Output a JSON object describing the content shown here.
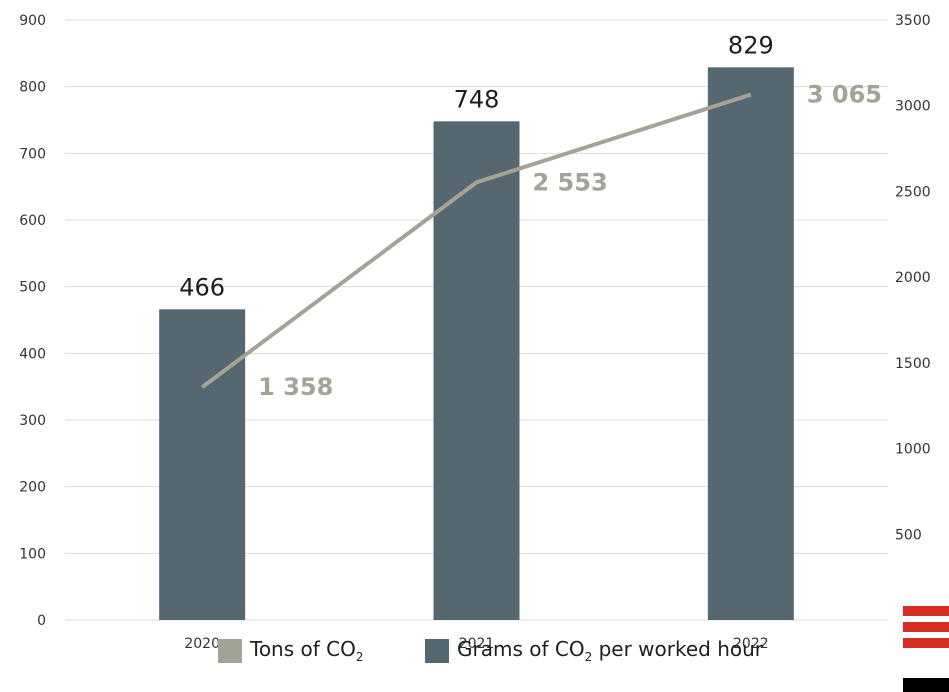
{
  "chart_data": {
    "type": "bar",
    "categories": [
      "2020",
      "2021",
      "2022"
    ],
    "bar_series": {
      "name": "Grams of CO2 per worked hour",
      "values": [
        466,
        748,
        829
      ],
      "labels": [
        "466",
        "748",
        "829"
      ],
      "color": "#556770"
    },
    "line_series": {
      "name": "Tons of CO2",
      "values": [
        1358,
        2553,
        3065
      ],
      "labels": [
        "1 358",
        "2 553",
        "3 065"
      ],
      "color": "#a3a397"
    },
    "y_left": {
      "min": 0,
      "max": 900,
      "ticks": [
        "0",
        "100",
        "200",
        "300",
        "400",
        "500",
        "600",
        "700",
        "800",
        "900"
      ]
    },
    "y_right": {
      "min": 0,
      "max": 3500,
      "ticks": [
        "500",
        "1000",
        "1500",
        "2000",
        "2500",
        "3000",
        "3500"
      ]
    },
    "grid": true,
    "legend_position": "bottom"
  },
  "legend": {
    "line_text": "Tons of CO",
    "line_sub": "2",
    "bar_text_before": "Grams of CO",
    "bar_sub": "2",
    "bar_text_after": " per worked hour"
  },
  "colors": {
    "brand_red": "#d62d23",
    "brand_black": "#000000",
    "grid": "#dcdcdc"
  }
}
